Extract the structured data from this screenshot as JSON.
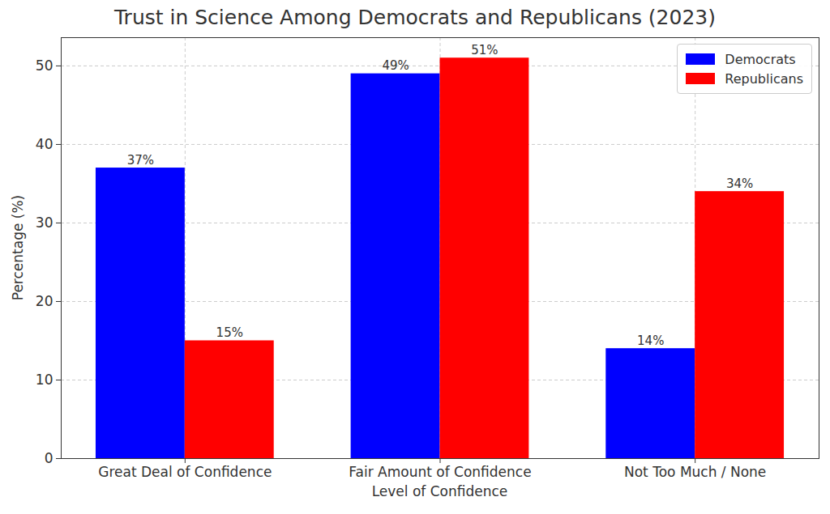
{
  "chart_data": {
    "type": "bar",
    "title": "Trust in Science Among Democrats and Republicans (2023)",
    "x_label": "Level of Confidence",
    "y_label": "Percentage (%)",
    "categories": [
      "Great Deal of Confidence",
      "Fair Amount of Confidence",
      "Not Too Much / None"
    ],
    "series": [
      {
        "name": "Democrats",
        "color": "#0000ff",
        "values": [
          37,
          49,
          14
        ],
        "value_labels": [
          "37%",
          "49%",
          "14%"
        ]
      },
      {
        "name": "Republicans",
        "color": "#ff0000",
        "values": [
          15,
          51,
          34
        ],
        "value_labels": [
          "15%",
          "51%",
          "34%"
        ]
      }
    ],
    "ylim": [
      0,
      53.6
    ],
    "yticks": [
      0,
      10,
      20,
      30,
      40,
      50
    ],
    "grid": true,
    "legend": "upper right",
    "data_labels": true
  }
}
